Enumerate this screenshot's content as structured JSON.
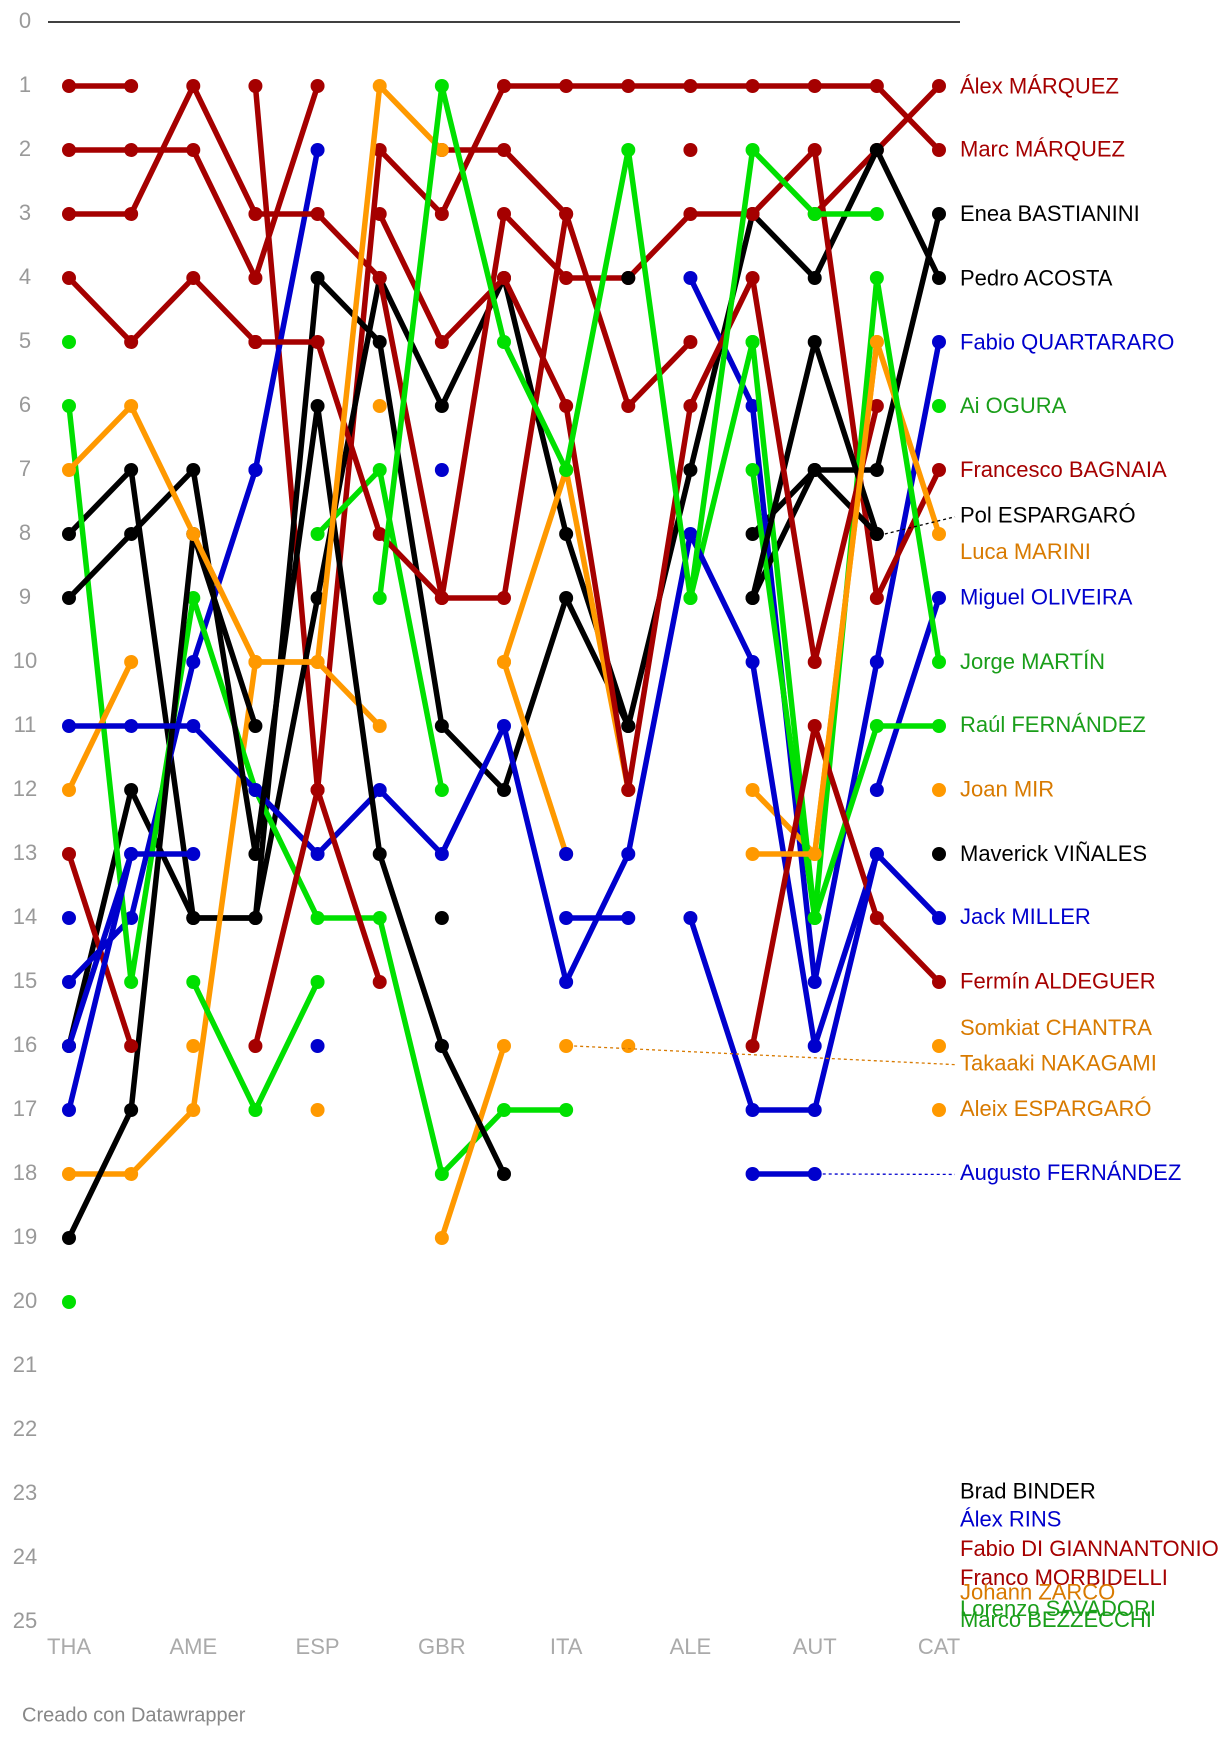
{
  "chart_data": {
    "type": "bump",
    "categories": [
      "THA",
      null,
      "AME",
      null,
      "ESP",
      null,
      "GBR",
      null,
      "ITA",
      null,
      "ALE",
      null,
      "AUT",
      null,
      "CAT"
    ],
    "ylim": [
      0,
      25
    ],
    "yticks": [
      0,
      1,
      2,
      3,
      4,
      5,
      6,
      7,
      8,
      9,
      10,
      11,
      12,
      13,
      14,
      15,
      16,
      17,
      18,
      19,
      20,
      21,
      22,
      23,
      24,
      25
    ],
    "inverted": true,
    "series": [
      {
        "name": "Álex MÁRQUEZ",
        "color": "#a50000",
        "values": [
          2,
          2,
          2,
          4,
          1,
          null,
          2,
          2,
          3,
          null,
          2,
          null,
          3,
          2,
          1
        ]
      },
      {
        "name": "Marc MÁRQUEZ",
        "color": "#a50000",
        "values": [
          1,
          1,
          null,
          1,
          12,
          2,
          3,
          1,
          1,
          1,
          1,
          1,
          1,
          1,
          2
        ]
      },
      {
        "name": "Enea BASTIANINI",
        "color": "#000000",
        "values": [
          16,
          12,
          14,
          14,
          4,
          5,
          11,
          12,
          9,
          11,
          null,
          8,
          7,
          7,
          3
        ]
      },
      {
        "name": "Pedro ACOSTA",
        "color": "#000000",
        "values": [
          8,
          7,
          14,
          14,
          9,
          4,
          6,
          4,
          8,
          11,
          7,
          3,
          4,
          2,
          4
        ]
      },
      {
        "name": "Fabio QUARTARARO",
        "color": "#0000cd",
        "values": [
          15,
          14,
          10,
          7,
          2,
          null,
          null,
          null,
          null,
          null,
          4,
          6,
          15,
          10,
          5
        ]
      },
      {
        "name": "Ai OGURA",
        "color": "#00e000",
        "values": [
          5,
          null,
          null,
          null,
          8,
          7,
          12,
          null,
          null,
          null,
          9,
          5,
          null,
          null,
          6
        ]
      },
      {
        "name": "Francesco BAGNAIA",
        "color": "#a50000",
        "values": [
          3,
          3,
          1,
          3,
          3,
          4,
          9,
          3,
          4,
          4,
          3,
          3,
          2,
          9,
          7
        ]
      },
      {
        "name": "Pol ESPARGARÓ",
        "color": "#000000",
        "values": [
          null,
          null,
          null,
          null,
          null,
          null,
          null,
          null,
          null,
          null,
          null,
          9,
          7,
          8,
          null
        ]
      },
      {
        "name": "Luca MARINI",
        "color": "#ff9900",
        "values": [
          18,
          18,
          17,
          10,
          10,
          11,
          null,
          10,
          7,
          12,
          null,
          12,
          13,
          5,
          8
        ]
      },
      {
        "name": "Miguel OLIVEIRA",
        "color": "#0000cd",
        "values": [
          14,
          null,
          null,
          null,
          null,
          null,
          16,
          null,
          null,
          null,
          null,
          null,
          null,
          12,
          9
        ]
      },
      {
        "name": "Jorge MARTÍN",
        "color": "#00e000",
        "values": [
          null,
          null,
          null,
          null,
          null,
          null,
          null,
          null,
          null,
          null,
          null,
          7,
          14,
          4,
          10
        ]
      },
      {
        "name": "Raúl FERNÁNDEZ",
        "color": "#00e000",
        "values": [
          6,
          15,
          9,
          12,
          14,
          14,
          18,
          17,
          17,
          null,
          null,
          5,
          14,
          11,
          11
        ]
      },
      {
        "name": "Joan MIR",
        "color": "#ff9900",
        "values": [
          12,
          10,
          null,
          null,
          null,
          6,
          null,
          10,
          13,
          null,
          null,
          null,
          null,
          null,
          12
        ]
      },
      {
        "name": "Maverick VIÑALES",
        "color": "#000000",
        "values": [
          19,
          17,
          8,
          11,
          null,
          null,
          14,
          null,
          null,
          null,
          null,
          null,
          null,
          null,
          13
        ]
      },
      {
        "name": "Jack MILLER",
        "color": "#0000cd",
        "values": [
          11,
          11,
          11,
          12,
          13,
          12,
          13,
          11,
          15,
          13,
          8,
          10,
          16,
          13,
          14
        ]
      },
      {
        "name": "Fermín ALDEGUER",
        "color": "#a50000",
        "values": [
          13,
          16,
          null,
          16,
          12,
          15,
          null,
          null,
          null,
          null,
          null,
          16,
          11,
          14,
          15
        ]
      },
      {
        "name": "Somkiat CHANTRA",
        "color": "#ff9900",
        "values": [
          null,
          null,
          16,
          null,
          17,
          null,
          19,
          16,
          null,
          12,
          null,
          null,
          null,
          null,
          16
        ]
      },
      {
        "name": "Takaaki NAKAGAMI",
        "color": "#ff9900",
        "values": [
          null,
          null,
          null,
          null,
          null,
          null,
          null,
          null,
          16,
          null,
          null,
          null,
          null,
          null,
          null
        ]
      },
      {
        "name": "Aleix ESPARGARÓ",
        "color": "#ff9900",
        "values": [
          null,
          null,
          null,
          null,
          null,
          null,
          null,
          null,
          null,
          16,
          null,
          null,
          null,
          null,
          17
        ]
      },
      {
        "name": "Augusto FERNÁNDEZ",
        "color": "#0000cd",
        "values": [
          17,
          13,
          13,
          null,
          16,
          null,
          7,
          null,
          14,
          14,
          null,
          18,
          18,
          null,
          null
        ]
      },
      {
        "name": "Brad BINDER",
        "color": "#000000",
        "values": [
          9,
          8,
          7,
          13,
          6,
          13,
          16,
          18,
          null,
          4,
          null,
          9,
          5,
          8,
          null
        ]
      },
      {
        "name": "Álex RINS",
        "color": "#0000cd",
        "values": [
          16,
          13,
          null,
          7,
          null,
          null,
          null,
          null,
          13,
          null,
          14,
          17,
          17,
          13,
          null
        ]
      },
      {
        "name": "Fabio DI GIANNANTONIO",
        "color": "#a50000",
        "values": [
          null,
          null,
          null,
          5,
          null,
          3,
          5,
          4,
          6,
          12,
          6,
          4,
          10,
          6,
          null
        ]
      },
      {
        "name": "Franco MORBIDELLI",
        "color": "#a50000",
        "values": [
          4,
          5,
          4,
          5,
          5,
          8,
          9,
          9,
          3,
          6,
          5,
          null,
          null,
          null,
          null
        ]
      },
      {
        "name": "Johann ZARCO",
        "color": "#ff9900",
        "values": [
          7,
          6,
          8,
          10,
          10,
          1,
          2,
          null,
          7,
          null,
          null,
          13,
          13,
          5,
          null
        ]
      },
      {
        "name": "Lorenzo SAVADORI",
        "color": "#00e000",
        "values": [
          20,
          null,
          15,
          17,
          15,
          null,
          null,
          null,
          null,
          null,
          null,
          null,
          null,
          null,
          null
        ]
      },
      {
        "name": "Marco BEZZECCHI",
        "color": "#00e000",
        "values": [
          null,
          null,
          null,
          null,
          null,
          9,
          1,
          5,
          7,
          2,
          9,
          2,
          3,
          3,
          null
        ]
      }
    ],
    "footer": "Creado con Datawrapper"
  }
}
